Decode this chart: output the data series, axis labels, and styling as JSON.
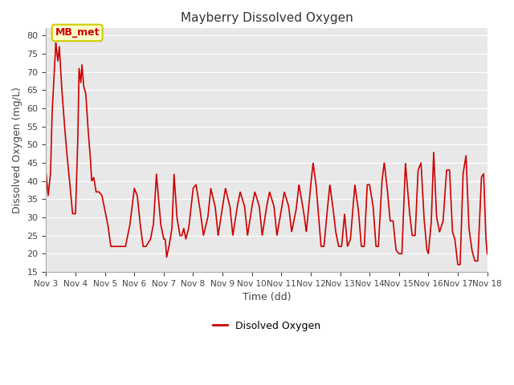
{
  "title": "Mayberry Dissolved Oxygen",
  "xlabel": "Time (dd)",
  "ylabel": "Dissolved Oxygen (mg/L)",
  "legend_label": "Disolved Oxygen",
  "annotation_text": "MB_met",
  "line_color": "#cc0000",
  "fig_facecolor": "#ffffff",
  "plot_facecolor": "#e8e8e8",
  "grid_color": "#ffffff",
  "ylim": [
    15,
    82
  ],
  "yticks": [
    15,
    20,
    25,
    30,
    35,
    40,
    45,
    50,
    55,
    60,
    65,
    70,
    75,
    80
  ],
  "x_start": 3.0,
  "x_end": 18.0,
  "xtick_labels": [
    "Nov 3",
    "Nov 4",
    "Nov 5",
    "Nov 6",
    "Nov 7",
    "Nov 8",
    "Nov 9",
    "Nov 10",
    "Nov 11",
    "Nov 12",
    "Nov 13",
    "Nov 14",
    "Nov 15",
    "Nov 16",
    "Nov 17",
    "Nov 18"
  ],
  "xtick_positions": [
    3,
    4,
    5,
    6,
    7,
    8,
    9,
    10,
    11,
    12,
    13,
    14,
    15,
    16,
    17,
    18
  ],
  "annotation_facecolor": "#ffffcc",
  "annotation_edgecolor": "#cccc00",
  "annotation_textcolor": "#cc0000"
}
